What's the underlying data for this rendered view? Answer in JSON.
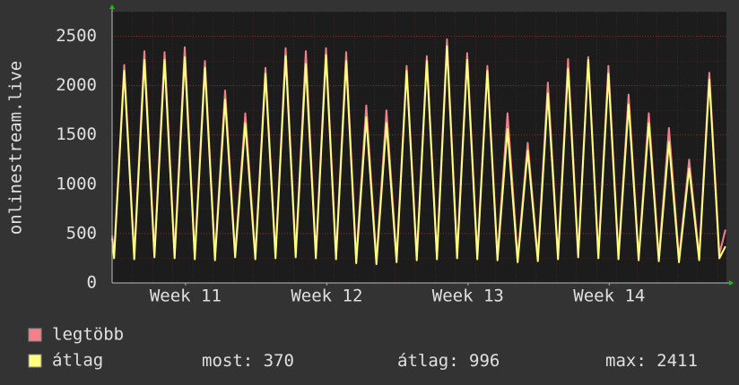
{
  "chart_data": {
    "type": "line",
    "y_label": "onlinestream.live",
    "xlim": [
      0,
      30.45
    ],
    "xticks": [
      {
        "value": 3.64,
        "label": "Week 11"
      },
      {
        "value": 10.64,
        "label": "Week 12"
      },
      {
        "value": 17.64,
        "label": "Week 13"
      },
      {
        "value": 24.64,
        "label": "Week 14"
      }
    ],
    "ylim": [
      0,
      2750
    ],
    "yticks": [
      0,
      500,
      1000,
      1500,
      2000,
      2500
    ],
    "grid": true,
    "x": [
      0,
      0.1,
      0.6,
      1.1,
      1.6,
      2.1,
      2.6,
      3.1,
      3.6,
      4.1,
      4.6,
      5.1,
      5.6,
      6.1,
      6.6,
      7.1,
      7.6,
      8.1,
      8.6,
      9.1,
      9.6,
      10.1,
      10.6,
      11.1,
      11.6,
      12.1,
      12.6,
      13.1,
      13.6,
      14.1,
      14.6,
      15.1,
      15.6,
      16.1,
      16.6,
      17.1,
      17.6,
      18.1,
      18.6,
      19.1,
      19.6,
      20.1,
      20.6,
      21.1,
      21.6,
      22.1,
      22.6,
      23.1,
      23.6,
      24.1,
      24.6,
      25.1,
      25.6,
      26.1,
      26.6,
      27.1,
      27.6,
      28.1,
      28.6,
      29.1,
      29.6,
      30.1,
      30.4
    ],
    "series": [
      {
        "name": "legtöbb",
        "color": "#f0808a",
        "values": [
          480,
          290,
          2210,
          280,
          2350,
          300,
          2340,
          290,
          2390,
          280,
          2250,
          270,
          1950,
          300,
          1720,
          280,
          2180,
          290,
          2380,
          300,
          2350,
          290,
          2380,
          280,
          2340,
          240,
          1800,
          230,
          1750,
          250,
          2200,
          270,
          2300,
          280,
          2470,
          290,
          2330,
          280,
          2200,
          270,
          1720,
          250,
          1420,
          260,
          2030,
          280,
          2270,
          300,
          2290,
          290,
          2200,
          280,
          1910,
          270,
          1720,
          260,
          1570,
          250,
          1250,
          270,
          2130,
          290,
          540
        ]
      },
      {
        "name": "átlag",
        "color": "#ffff80",
        "values": [
          450,
          250,
          2150,
          240,
          2260,
          260,
          2260,
          250,
          2290,
          240,
          2180,
          230,
          1860,
          260,
          1620,
          240,
          2120,
          250,
          2300,
          260,
          2220,
          250,
          2310,
          240,
          2250,
          200,
          1680,
          190,
          1620,
          210,
          2150,
          230,
          2250,
          240,
          2400,
          250,
          2260,
          240,
          2150,
          230,
          1560,
          210,
          1340,
          220,
          1920,
          240,
          2170,
          260,
          2260,
          250,
          2120,
          240,
          1810,
          230,
          1620,
          220,
          1430,
          210,
          1160,
          230,
          2060,
          250,
          370
        ]
      }
    ],
    "stats": [
      {
        "label": "most:",
        "value": 370
      },
      {
        "label": "átlag:",
        "value": 996
      },
      {
        "label": "max:",
        "value": 2411
      }
    ]
  }
}
